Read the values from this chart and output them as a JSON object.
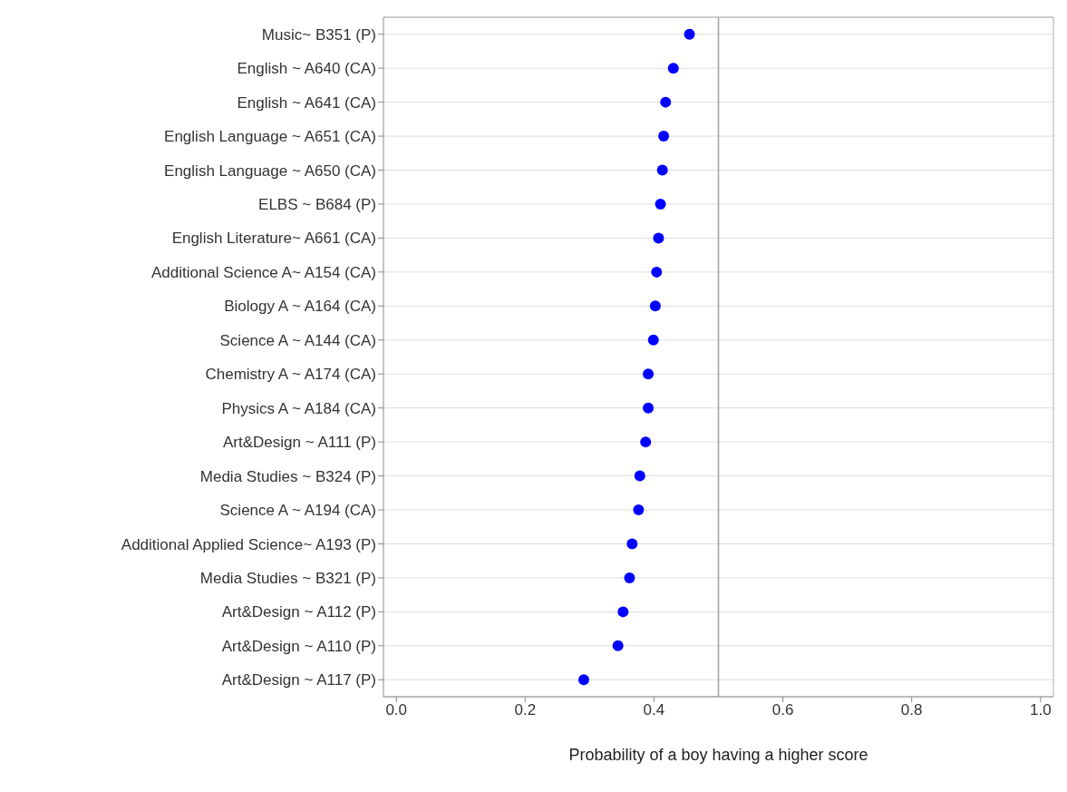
{
  "chart_data": {
    "type": "scatter",
    "orientation": "horizontal",
    "xlabel": "Probability of a boy having a higher score",
    "categories": [
      "Music~ B351  (P)",
      "English ~ A640  (CA)",
      "English ~ A641  (CA)",
      "English Language ~ A651  (CA)",
      "English Language ~ A650  (CA)",
      "ELBS ~ B684  (P)",
      "English Literature~ A661  (CA)",
      "Additional Science A~ A154  (CA)",
      "Biology A ~ A164  (CA)",
      "Science A ~ A144  (CA)",
      "Chemistry A ~ A174  (CA)",
      "Physics A ~ A184  (CA)",
      "Art&Design ~ A111  (P)",
      "Media Studies ~ B324  (P)",
      "Science A ~ A194  (CA)",
      "Additional Applied Science~ A193 (P)",
      "Media Studies ~ B321  (P)",
      "Art&Design ~ A112  (P)",
      "Art&Design ~ A110  (P)",
      "Art&Design ~ A117  (P)"
    ],
    "values": [
      0.455,
      0.43,
      0.418,
      0.415,
      0.413,
      0.41,
      0.407,
      0.404,
      0.402,
      0.399,
      0.391,
      0.391,
      0.387,
      0.378,
      0.376,
      0.366,
      0.362,
      0.352,
      0.344,
      0.291
    ],
    "color": "#0000ff",
    "marker": "circle",
    "grid": "y",
    "xlim": [
      -0.02,
      1.02
    ],
    "xticks": [
      {
        "value": 0,
        "label": "0.0"
      },
      0.2,
      0.4,
      0.6,
      0.8,
      {
        "value": 1,
        "label": "1.0"
      }
    ],
    "ref_lines": [
      {
        "axis": "x",
        "value": 0.5,
        "color": "#a0a0a0"
      }
    ]
  }
}
